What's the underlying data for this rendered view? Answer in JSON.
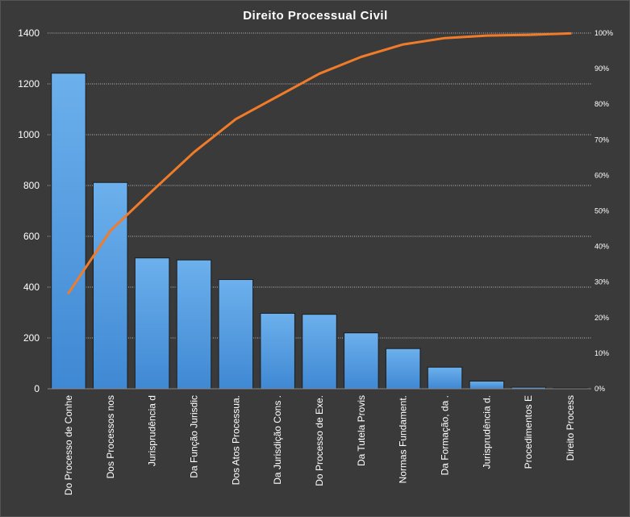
{
  "chart_data": {
    "type": "bar",
    "title": "Direito Processual Civil",
    "categories": [
      "Do Processo de Conhe",
      "Dos Processos nos",
      "Jurisprudência d",
      "Da Função Jurisdic",
      "Dos Atos Processua.",
      "Da Jurisdição Cons .",
      "Do Processo de Exe.",
      "Da Tutela Provis",
      "Normas Fundament.",
      "Da Formação, da .",
      "Jurisprudência d.",
      "Procedimentos E",
      "Direito Process"
    ],
    "series": [
      {
        "type": "bar",
        "axis": "left",
        "values": [
          1242,
          812,
          515,
          507,
          430,
          297,
          293,
          220,
          158,
          85,
          30,
          6,
          3
        ]
      },
      {
        "type": "line",
        "axis": "right",
        "values": [
          26.9,
          44.4,
          55.6,
          66.5,
          75.8,
          82.2,
          88.6,
          93.3,
          96.8,
          98.6,
          99.3,
          99.5,
          99.9
        ]
      }
    ],
    "ylim": [
      0,
      1400
    ],
    "yticks": [
      0,
      200,
      400,
      600,
      800,
      1000,
      1200,
      1400
    ],
    "y2lim": [
      0,
      100
    ],
    "y2ticks": [
      "0%",
      "10%",
      "20%",
      "30%",
      "40%",
      "50%",
      "60%",
      "70%",
      "80%",
      "90%",
      "100%"
    ],
    "grid": true,
    "legend": "none",
    "colors": {
      "bars": "#5aa3e6",
      "line": "#f07c2a",
      "background": "#3a3a3a"
    }
  }
}
